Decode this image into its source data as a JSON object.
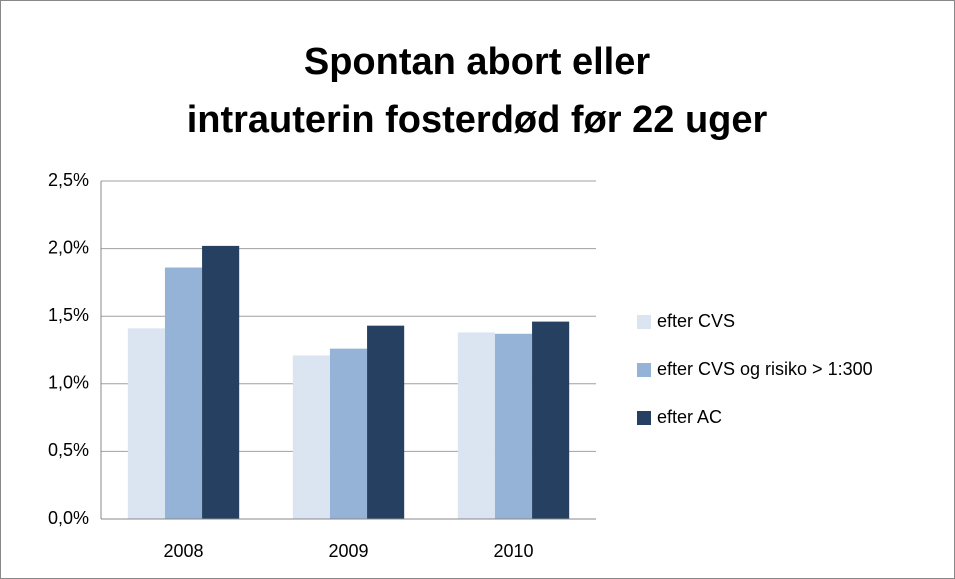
{
  "chart_data": {
    "type": "bar",
    "title": [
      "Spontan abort eller",
      "intrauterin fosterdød før 22 uger"
    ],
    "categories": [
      "2008",
      "2009",
      "2010"
    ],
    "series": [
      {
        "name": "efter CVS",
        "color": "#dbe5f1",
        "values": [
          1.41,
          1.21,
          1.38
        ]
      },
      {
        "name": "efter CVS og risiko > 1:300",
        "color": "#95b3d7",
        "values": [
          1.86,
          1.26,
          1.37
        ]
      },
      {
        "name": "efter AC",
        "color": "#254061",
        "values": [
          2.02,
          1.43,
          1.46
        ]
      }
    ],
    "ylim": [
      0,
      2.5
    ],
    "yticks": [
      {
        "value": 0,
        "label": "0,0%"
      },
      {
        "value": 0.5,
        "label": "0,5%"
      },
      {
        "value": 1,
        "label": "1,0%"
      },
      {
        "value": 1.5,
        "label": "1,5%"
      },
      {
        "value": 2,
        "label": "2,0%"
      },
      {
        "value": 2.5,
        "label": "2,5%"
      }
    ],
    "grid": true,
    "legend": "right"
  }
}
